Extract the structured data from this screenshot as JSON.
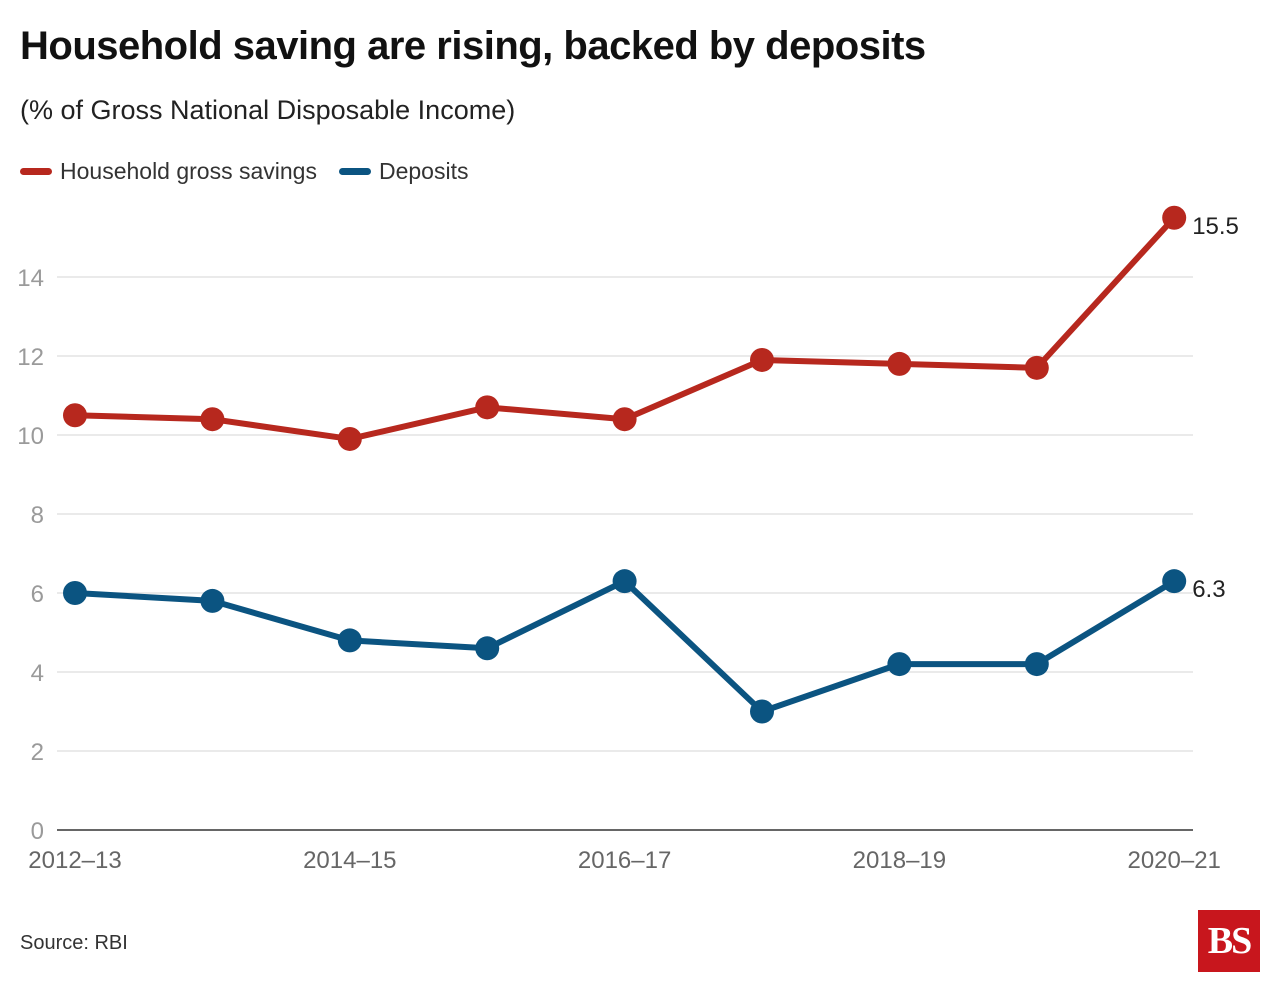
{
  "title": "Household saving are rising, backed by deposits",
  "subtitle": "(% of Gross National Disposable Income)",
  "source": "Source: RBI",
  "logo_text": "BS",
  "colors": {
    "savings": "#b7281e",
    "deposits": "#0b5481",
    "grid": "#e3e3e3",
    "axis": "#333333",
    "tick": "#9a9a9a"
  },
  "chart_data": {
    "type": "line",
    "x": [
      "2012-13",
      "2013-14",
      "2014-15",
      "2015-16",
      "2016-17",
      "2017-18",
      "2018-19",
      "2019-20",
      "2020-21"
    ],
    "x_tick_labels": [
      "2012–13",
      "",
      "2014–15",
      "",
      "2016–17",
      "",
      "2018–19",
      "",
      "2020–21"
    ],
    "ylim": [
      0,
      16
    ],
    "y_ticks": [
      0,
      2,
      4,
      6,
      8,
      10,
      12,
      14
    ],
    "grid": true,
    "legend_position": "top-left",
    "series": [
      {
        "name": "Household gross savings",
        "color": "#b7281e",
        "values": [
          10.5,
          10.4,
          9.9,
          10.7,
          10.4,
          11.9,
          11.8,
          11.7,
          15.5
        ],
        "end_label": "15.5"
      },
      {
        "name": "Deposits",
        "color": "#0b5481",
        "values": [
          6.0,
          5.8,
          4.8,
          4.6,
          6.3,
          3.0,
          4.2,
          4.2,
          6.3
        ],
        "end_label": "6.3"
      }
    ]
  }
}
